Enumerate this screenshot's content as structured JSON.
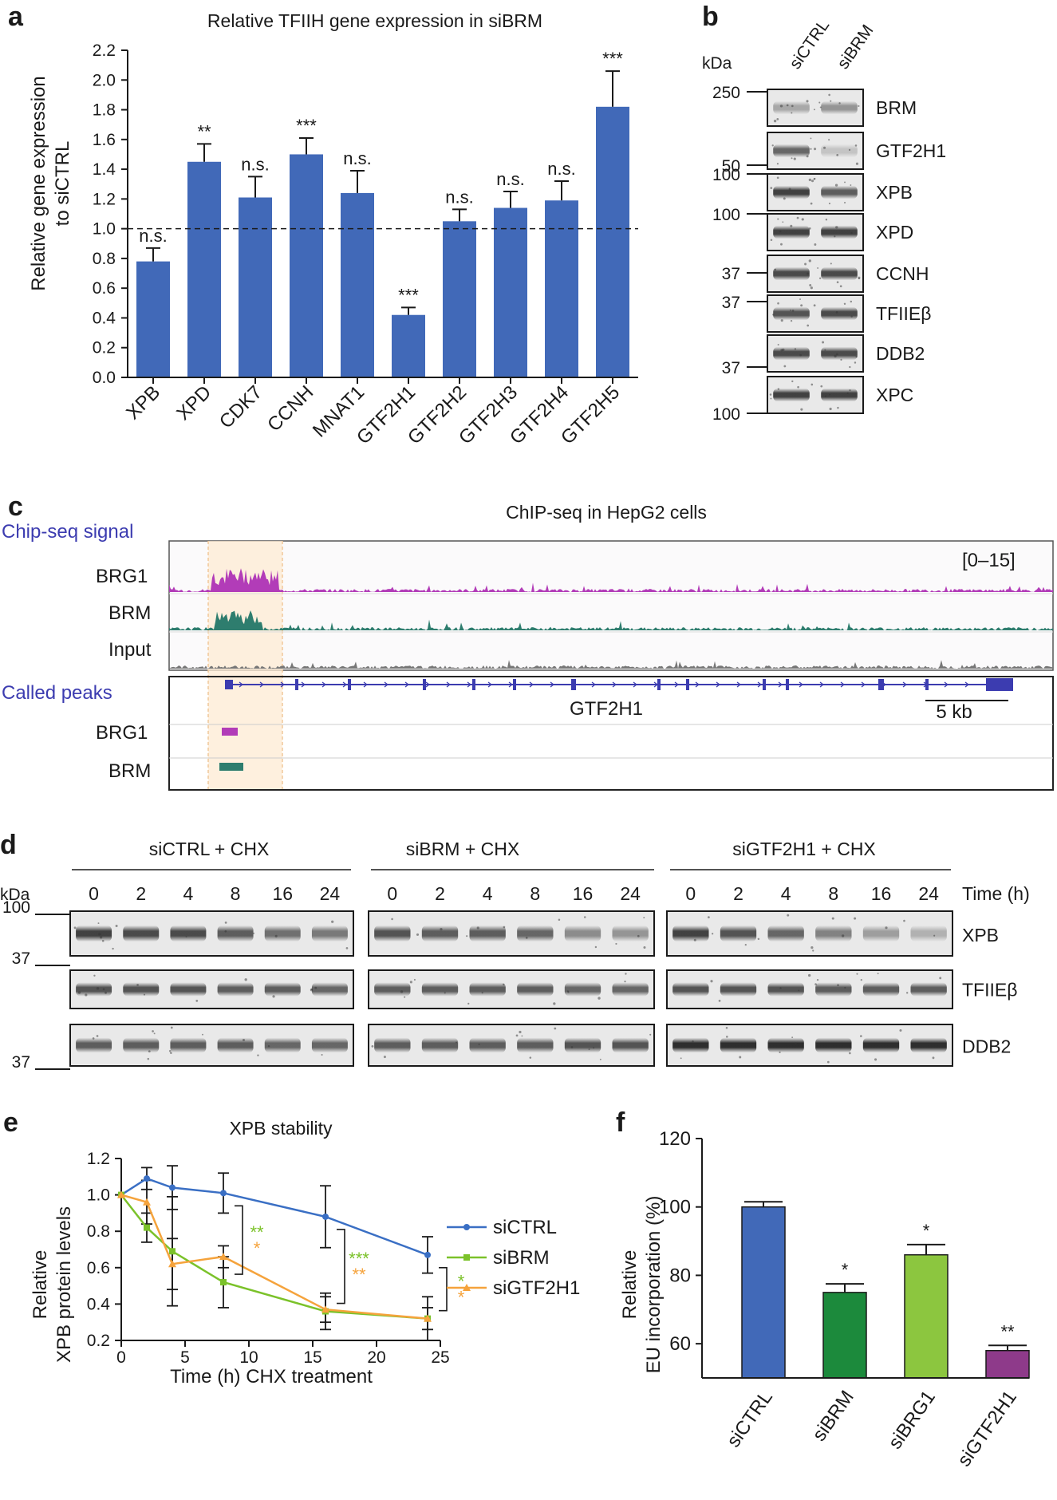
{
  "colors": {
    "bar_blue": "#4169b8",
    "siCTRL": "#3a6fc4",
    "siBRM": "#7bc22a",
    "siGTF2H1": "#f5a33c",
    "f_siCTRL": "#4169b8",
    "f_siBRM": "#1c8a3c",
    "f_siBRG1": "#8cc63f",
    "f_siGTF2H1": "#8e3a8a",
    "brg1_track": "#b23cb8",
    "brm_track": "#2e7d6e",
    "input_track": "#777777",
    "gene_model": "#3c3cb0",
    "highlight": "#fdebd3"
  },
  "panel_labels": {
    "a": "a",
    "b": "b",
    "c": "c",
    "d": "d",
    "e": "e",
    "f": "f"
  },
  "panel_a": {
    "chart_data": {
      "type": "bar",
      "title": "Relative TFIIH gene expression in siBRM",
      "ylabel_line1": "Relative gene expression",
      "ylabel_line2": "to siCTRL",
      "categories": [
        "XPB",
        "XPD",
        "CDK7",
        "CCNH",
        "MNAT1",
        "GTF2H1",
        "GTF2H2",
        "GTF2H3",
        "GTF2H4",
        "GTF2H5"
      ],
      "values": [
        0.78,
        1.45,
        1.21,
        1.5,
        1.24,
        0.42,
        1.05,
        1.14,
        1.19,
        1.82
      ],
      "errors": [
        0.09,
        0.12,
        0.14,
        0.11,
        0.15,
        0.05,
        0.08,
        0.11,
        0.13,
        0.24
      ],
      "significance": [
        "n.s.",
        "**",
        "n.s.",
        "***",
        "n.s.",
        "***",
        "n.s.",
        "n.s.",
        "n.s.",
        "***"
      ],
      "ylim": [
        0,
        2.2
      ],
      "yticks": [
        "0.0",
        "0.2",
        "0.4",
        "0.6",
        "0.8",
        "1.0",
        "1.2",
        "1.4",
        "1.6",
        "1.8",
        "2.0",
        "2.2"
      ],
      "reference_line": 1.0
    }
  },
  "panel_b": {
    "kda_label": "kDa",
    "columns": [
      "siCTRL",
      "siBRM"
    ],
    "kda_markers": [
      "250",
      "50",
      "100",
      "100",
      "37",
      "37",
      "37",
      "100"
    ],
    "blots": [
      "BRM",
      "GTF2H1",
      "XPB",
      "XPD",
      "CCNH",
      "TFIIEβ",
      "DDB2",
      "XPC"
    ]
  },
  "panel_c": {
    "title": "ChIP-seq in HepG2 cells",
    "signal_header": "Chip-seq signal",
    "tracks": [
      "BRG1",
      "BRM",
      "Input"
    ],
    "range": "[0–15]",
    "peaks_header": "Called peaks",
    "peak_tracks": [
      "BRG1",
      "BRM"
    ],
    "gene": "GTF2H1",
    "scale": "5 kb"
  },
  "panel_d": {
    "groups": [
      "siCTRL + CHX",
      "siBRM + CHX",
      "siGTF2H1 + CHX"
    ],
    "kda_label": "kDa",
    "times": [
      "0",
      "2",
      "4",
      "8",
      "16",
      "24"
    ],
    "time_label": "Time (h)",
    "kda_markers": [
      "100",
      "37",
      "37"
    ],
    "blots": [
      "XPB",
      "TFIIEβ",
      "DDB2"
    ]
  },
  "panel_e": {
    "chart_data": {
      "type": "line",
      "title": "XPB stability",
      "xlabel": "Time (h) CHX treatment",
      "ylabel_line1": "Relative",
      "ylabel_line2": "XPB protein levels",
      "xlim": [
        0,
        25
      ],
      "ylim": [
        0.2,
        1.2
      ],
      "xticks": [
        "0",
        "5",
        "10",
        "15",
        "20",
        "25"
      ],
      "yticks": [
        "0.2",
        "0.4",
        "0.6",
        "0.8",
        "1.0",
        "1.2"
      ],
      "series": [
        {
          "name": "siCTRL",
          "x": [
            0,
            2,
            4,
            8,
            16,
            24
          ],
          "y": [
            1.0,
            1.09,
            1.04,
            1.01,
            0.88,
            0.67
          ],
          "err": [
            0,
            0.06,
            0.12,
            0.11,
            0.17,
            0.1
          ]
        },
        {
          "name": "siBRM",
          "x": [
            0,
            2,
            4,
            8,
            16,
            24
          ],
          "y": [
            1.0,
            0.82,
            0.69,
            0.52,
            0.36,
            0.32
          ],
          "err": [
            0,
            0.08,
            0.3,
            0.14,
            0.1,
            0.12
          ]
        },
        {
          "name": "siGTF2H1",
          "x": [
            0,
            2,
            4,
            8,
            16,
            24
          ],
          "y": [
            1.0,
            0.96,
            0.62,
            0.66,
            0.37,
            0.32
          ],
          "err": [
            0,
            0.12,
            0.14,
            0.06,
            0.07,
            0.06
          ]
        }
      ],
      "annotations": [
        {
          "at_x": 8,
          "green": "**",
          "orange": "*"
        },
        {
          "at_x": 16,
          "green": "***",
          "orange": "**"
        },
        {
          "at_x": 24,
          "green": "*",
          "orange": "*"
        }
      ]
    }
  },
  "panel_f": {
    "chart_data": {
      "type": "bar",
      "ylabel_line1": "Relative",
      "ylabel_line2": "EU incorporation (%)",
      "categories": [
        "siCTRL",
        "siBRM",
        "siBRG1",
        "siGTF2H1"
      ],
      "values": [
        100,
        75,
        86,
        58
      ],
      "errors": [
        1.5,
        2.5,
        3.0,
        1.5
      ],
      "significance": [
        "",
        "*",
        "*",
        "**"
      ],
      "ylim": [
        50,
        120
      ],
      "yticks": [
        "60",
        "80",
        "100",
        "120"
      ]
    }
  }
}
